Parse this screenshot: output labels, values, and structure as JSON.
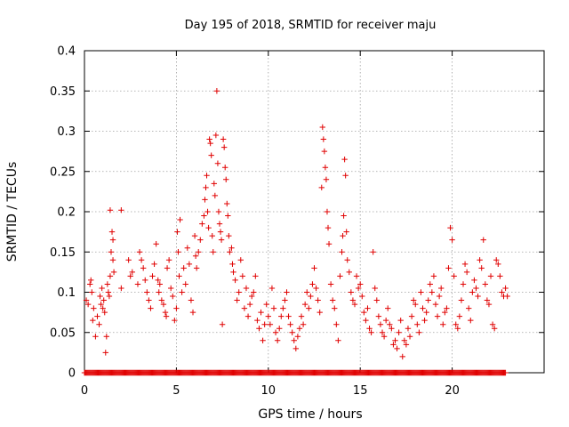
{
  "chart_data": {
    "type": "scatter",
    "title": "Day 195 of 2018, SRMTID for receiver maju",
    "xlabel": "GPS time / hours",
    "ylabel": "SRMTID / TECUs",
    "xlim": [
      0,
      25
    ],
    "ylim": [
      0,
      0.4
    ],
    "xticks": [
      0,
      5,
      10,
      15,
      20
    ],
    "xtick_labels": [
      "0",
      "5",
      "10",
      "15",
      "20"
    ],
    "yticks": [
      0,
      0.05,
      0.1,
      0.15,
      0.2,
      0.25,
      0.3,
      0.35,
      0.4
    ],
    "ytick_labels": [
      "0",
      "0.05",
      "0.1",
      "0.15",
      "0.2",
      "0.25",
      "0.3",
      "0.35",
      "0.4"
    ],
    "grid": true,
    "marker": "+",
    "color": "#e00000",
    "series": [
      {
        "name": "SRMTID",
        "points": [
          [
            0.1,
            0.09
          ],
          [
            0.2,
            0.085
          ],
          [
            0.3,
            0.11
          ],
          [
            0.35,
            0.115
          ],
          [
            0.4,
            0.1
          ],
          [
            0.45,
            0.065
          ],
          [
            0.5,
            0.08
          ],
          [
            0.6,
            0.045
          ],
          [
            0.7,
            0.07
          ],
          [
            0.8,
            0.06
          ],
          [
            0.85,
            0.095
          ],
          [
            0.9,
            0.085
          ],
          [
            0.95,
            0.105
          ],
          [
            1.0,
            0.08
          ],
          [
            1.05,
            0.09
          ],
          [
            1.1,
            0.075
          ],
          [
            1.15,
            0.025
          ],
          [
            1.2,
            0.045
          ],
          [
            1.25,
            0.11
          ],
          [
            1.3,
            0.1
          ],
          [
            1.35,
            0.095
          ],
          [
            1.4,
            0.12
          ],
          [
            1.45,
            0.15
          ],
          [
            1.5,
            0.175
          ],
          [
            1.55,
            0.165
          ],
          [
            1.4,
            0.202
          ],
          [
            1.55,
            0.14
          ],
          [
            1.6,
            0.125
          ],
          [
            2.0,
            0.202
          ],
          [
            2.0,
            0.105
          ],
          [
            2.4,
            0.14
          ],
          [
            2.5,
            0.12
          ],
          [
            2.6,
            0.125
          ],
          [
            2.9,
            0.11
          ],
          [
            3.0,
            0.15
          ],
          [
            3.1,
            0.14
          ],
          [
            3.2,
            0.13
          ],
          [
            3.3,
            0.115
          ],
          [
            3.4,
            0.1
          ],
          [
            3.5,
            0.09
          ],
          [
            3.6,
            0.08
          ],
          [
            3.7,
            0.12
          ],
          [
            3.8,
            0.135
          ],
          [
            3.9,
            0.16
          ],
          [
            4.0,
            0.115
          ],
          [
            4.05,
            0.1
          ],
          [
            4.1,
            0.11
          ],
          [
            4.2,
            0.09
          ],
          [
            4.3,
            0.085
          ],
          [
            4.4,
            0.075
          ],
          [
            4.45,
            0.07
          ],
          [
            4.5,
            0.13
          ],
          [
            4.6,
            0.14
          ],
          [
            4.7,
            0.105
          ],
          [
            4.8,
            0.095
          ],
          [
            4.9,
            0.065
          ],
          [
            5.0,
            0.08
          ],
          [
            5.05,
            0.175
          ],
          [
            5.1,
            0.15
          ],
          [
            5.15,
            0.12
          ],
          [
            5.2,
            0.19
          ],
          [
            5.3,
            0.1
          ],
          [
            5.4,
            0.13
          ],
          [
            5.5,
            0.11
          ],
          [
            5.6,
            0.155
          ],
          [
            5.7,
            0.135
          ],
          [
            5.8,
            0.09
          ],
          [
            5.9,
            0.075
          ],
          [
            6.0,
            0.17
          ],
          [
            6.05,
            0.145
          ],
          [
            6.1,
            0.13
          ],
          [
            6.2,
            0.15
          ],
          [
            6.3,
            0.165
          ],
          [
            6.4,
            0.185
          ],
          [
            6.5,
            0.195
          ],
          [
            6.55,
            0.215
          ],
          [
            6.6,
            0.23
          ],
          [
            6.65,
            0.245
          ],
          [
            6.7,
            0.2
          ],
          [
            6.75,
            0.18
          ],
          [
            6.8,
            0.29
          ],
          [
            6.85,
            0.285
          ],
          [
            6.9,
            0.27
          ],
          [
            6.95,
            0.17
          ],
          [
            7.0,
            0.15
          ],
          [
            7.05,
            0.235
          ],
          [
            7.1,
            0.22
          ],
          [
            7.15,
            0.295
          ],
          [
            7.2,
            0.35
          ],
          [
            7.25,
            0.26
          ],
          [
            7.3,
            0.2
          ],
          [
            7.35,
            0.185
          ],
          [
            7.4,
            0.175
          ],
          [
            7.45,
            0.165
          ],
          [
            7.5,
            0.06
          ],
          [
            7.55,
            0.29
          ],
          [
            7.6,
            0.28
          ],
          [
            7.65,
            0.255
          ],
          [
            7.7,
            0.24
          ],
          [
            7.75,
            0.21
          ],
          [
            7.8,
            0.195
          ],
          [
            7.85,
            0.17
          ],
          [
            7.9,
            0.15
          ],
          [
            8.0,
            0.155
          ],
          [
            8.05,
            0.135
          ],
          [
            8.1,
            0.125
          ],
          [
            8.2,
            0.115
          ],
          [
            8.3,
            0.09
          ],
          [
            8.4,
            0.1
          ],
          [
            8.5,
            0.14
          ],
          [
            8.6,
            0.12
          ],
          [
            8.7,
            0.08
          ],
          [
            8.8,
            0.105
          ],
          [
            8.9,
            0.07
          ],
          [
            9.0,
            0.085
          ],
          [
            9.1,
            0.095
          ],
          [
            9.2,
            0.1
          ],
          [
            9.3,
            0.12
          ],
          [
            9.4,
            0.065
          ],
          [
            9.5,
            0.055
          ],
          [
            9.6,
            0.075
          ],
          [
            9.7,
            0.04
          ],
          [
            9.8,
            0.06
          ],
          [
            9.9,
            0.085
          ],
          [
            10.0,
            0.07
          ],
          [
            10.1,
            0.06
          ],
          [
            10.2,
            0.105
          ],
          [
            10.3,
            0.08
          ],
          [
            10.4,
            0.05
          ],
          [
            10.5,
            0.04
          ],
          [
            10.6,
            0.055
          ],
          [
            10.7,
            0.07
          ],
          [
            10.8,
            0.08
          ],
          [
            10.9,
            0.09
          ],
          [
            11.0,
            0.1
          ],
          [
            11.1,
            0.07
          ],
          [
            11.2,
            0.06
          ],
          [
            11.3,
            0.05
          ],
          [
            11.4,
            0.04
          ],
          [
            11.5,
            0.03
          ],
          [
            11.6,
            0.045
          ],
          [
            11.7,
            0.055
          ],
          [
            11.8,
            0.07
          ],
          [
            11.9,
            0.06
          ],
          [
            12.0,
            0.085
          ],
          [
            12.1,
            0.1
          ],
          [
            12.2,
            0.08
          ],
          [
            12.3,
            0.095
          ],
          [
            12.4,
            0.11
          ],
          [
            12.5,
            0.13
          ],
          [
            12.6,
            0.105
          ],
          [
            12.7,
            0.09
          ],
          [
            12.8,
            0.075
          ],
          [
            12.9,
            0.23
          ],
          [
            12.95,
            0.305
          ],
          [
            13.0,
            0.29
          ],
          [
            13.05,
            0.275
          ],
          [
            13.1,
            0.255
          ],
          [
            13.15,
            0.24
          ],
          [
            13.2,
            0.2
          ],
          [
            13.25,
            0.18
          ],
          [
            13.3,
            0.16
          ],
          [
            13.4,
            0.11
          ],
          [
            13.5,
            0.09
          ],
          [
            13.6,
            0.08
          ],
          [
            13.7,
            0.06
          ],
          [
            13.8,
            0.04
          ],
          [
            13.9,
            0.12
          ],
          [
            14.0,
            0.15
          ],
          [
            14.05,
            0.17
          ],
          [
            14.1,
            0.195
          ],
          [
            14.15,
            0.265
          ],
          [
            14.2,
            0.245
          ],
          [
            14.25,
            0.175
          ],
          [
            14.3,
            0.14
          ],
          [
            14.4,
            0.125
          ],
          [
            14.5,
            0.1
          ],
          [
            14.6,
            0.09
          ],
          [
            14.7,
            0.085
          ],
          [
            14.8,
            0.12
          ],
          [
            14.9,
            0.105
          ],
          [
            15.0,
            0.11
          ],
          [
            15.1,
            0.095
          ],
          [
            15.2,
            0.075
          ],
          [
            15.3,
            0.065
          ],
          [
            15.4,
            0.08
          ],
          [
            15.5,
            0.055
          ],
          [
            15.6,
            0.05
          ],
          [
            15.7,
            0.15
          ],
          [
            15.8,
            0.105
          ],
          [
            15.9,
            0.09
          ],
          [
            16.0,
            0.07
          ],
          [
            16.1,
            0.06
          ],
          [
            16.2,
            0.05
          ],
          [
            16.3,
            0.045
          ],
          [
            16.4,
            0.065
          ],
          [
            16.5,
            0.08
          ],
          [
            16.6,
            0.06
          ],
          [
            16.7,
            0.055
          ],
          [
            16.8,
            0.035
          ],
          [
            16.9,
            0.04
          ],
          [
            17.0,
            0.03
          ],
          [
            17.1,
            0.05
          ],
          [
            17.2,
            0.065
          ],
          [
            17.3,
            0.02
          ],
          [
            17.4,
            0.04
          ],
          [
            17.5,
            0.035
          ],
          [
            17.6,
            0.055
          ],
          [
            17.7,
            0.045
          ],
          [
            17.8,
            0.07
          ],
          [
            17.9,
            0.09
          ],
          [
            18.0,
            0.085
          ],
          [
            18.1,
            0.06
          ],
          [
            18.2,
            0.05
          ],
          [
            18.3,
            0.1
          ],
          [
            18.4,
            0.08
          ],
          [
            18.5,
            0.065
          ],
          [
            18.6,
            0.075
          ],
          [
            18.7,
            0.09
          ],
          [
            18.8,
            0.11
          ],
          [
            18.9,
            0.1
          ],
          [
            19.0,
            0.12
          ],
          [
            19.1,
            0.085
          ],
          [
            19.2,
            0.07
          ],
          [
            19.3,
            0.095
          ],
          [
            19.4,
            0.105
          ],
          [
            19.5,
            0.06
          ],
          [
            19.6,
            0.075
          ],
          [
            19.7,
            0.08
          ],
          [
            19.8,
            0.13
          ],
          [
            19.9,
            0.18
          ],
          [
            20.0,
            0.165
          ],
          [
            20.1,
            0.12
          ],
          [
            20.2,
            0.06
          ],
          [
            20.3,
            0.055
          ],
          [
            20.4,
            0.07
          ],
          [
            20.5,
            0.09
          ],
          [
            20.6,
            0.11
          ],
          [
            20.7,
            0.135
          ],
          [
            20.8,
            0.125
          ],
          [
            20.9,
            0.08
          ],
          [
            21.0,
            0.065
          ],
          [
            21.1,
            0.1
          ],
          [
            21.2,
            0.115
          ],
          [
            21.3,
            0.105
          ],
          [
            21.4,
            0.095
          ],
          [
            21.5,
            0.14
          ],
          [
            21.6,
            0.13
          ],
          [
            21.7,
            0.165
          ],
          [
            21.8,
            0.11
          ],
          [
            21.9,
            0.09
          ],
          [
            22.0,
            0.085
          ],
          [
            22.1,
            0.12
          ],
          [
            22.2,
            0.06
          ],
          [
            22.3,
            0.055
          ],
          [
            22.4,
            0.14
          ],
          [
            22.5,
            0.135
          ],
          [
            22.6,
            0.12
          ],
          [
            22.7,
            0.1
          ],
          [
            22.8,
            0.095
          ],
          [
            22.9,
            0.105
          ],
          [
            23.0,
            0.095
          ]
        ],
        "zero_band": {
          "from": 0.0,
          "to": 22.9,
          "step": 0.05,
          "value": 0
        }
      }
    ]
  }
}
